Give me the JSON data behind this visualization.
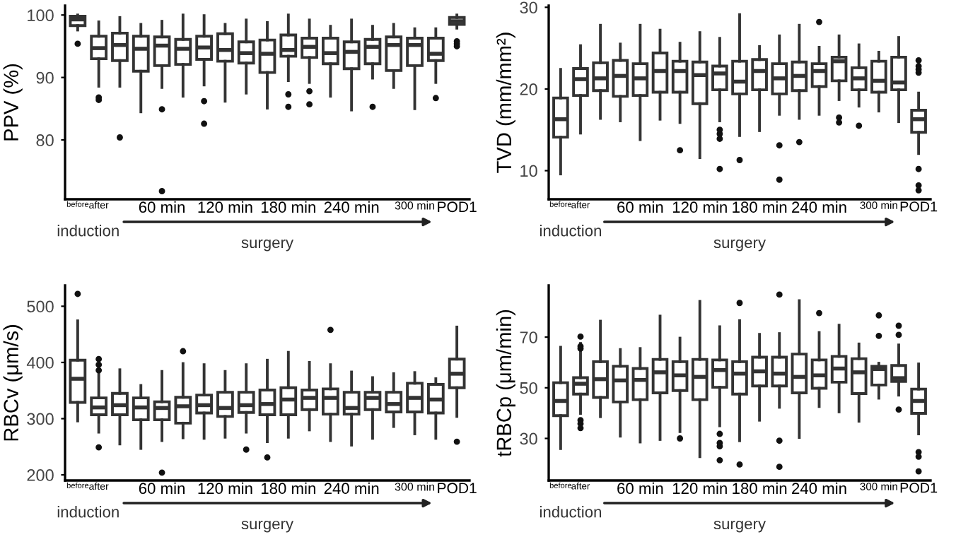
{
  "chart_data": [
    {
      "type": "box",
      "ylabel": "PPV (%)",
      "ylim": [
        70.5,
        101.5
      ],
      "yticks": [
        80,
        90,
        100
      ],
      "grid": false,
      "color": "#333333",
      "annotations": [
        "induction",
        "surgery"
      ],
      "categories": [
        "before",
        "after",
        null,
        null,
        "60 min",
        null,
        null,
        "120 min",
        null,
        null,
        "180 min",
        null,
        null,
        "240 min",
        null,
        null,
        "300 min",
        null,
        "POD1"
      ],
      "boxes": [
        {
          "low": 97.6,
          "q1": 98.3,
          "median": 99.3,
          "q3": 99.8,
          "high": 100,
          "outliers": [
            95.4
          ]
        },
        {
          "low": 88.6,
          "q1": 93.0,
          "median": 94.7,
          "q3": 96.6,
          "high": 98.9,
          "outliers": [
            86.8,
            86.4
          ]
        },
        {
          "low": 88.6,
          "q1": 92.7,
          "median": 95.2,
          "q3": 97.1,
          "high": 99.6,
          "outliers": [
            80.4
          ]
        },
        {
          "low": 84.5,
          "q1": 91.0,
          "median": 94.6,
          "q3": 96.6,
          "high": 98.5
        },
        {
          "low": 88.4,
          "q1": 91.9,
          "median": 95.1,
          "q3": 96.5,
          "high": 99.0,
          "outliers": [
            84.9,
            71.8
          ]
        },
        {
          "low": 87.0,
          "q1": 92.1,
          "median": 94.6,
          "q3": 96.1,
          "high": 100
        },
        {
          "low": 88.8,
          "q1": 92.9,
          "median": 94.8,
          "q3": 96.6,
          "high": 99.9,
          "outliers": [
            86.2,
            82.6
          ]
        },
        {
          "low": 86.2,
          "q1": 92.6,
          "median": 94.4,
          "q3": 97.0,
          "high": 98.5
        },
        {
          "low": 87.5,
          "q1": 92.3,
          "median": 93.9,
          "q3": 95.7,
          "high": 99.2
        },
        {
          "low": 85.1,
          "q1": 90.8,
          "median": 93.8,
          "q3": 96.0,
          "high": 98.8
        },
        {
          "low": 89.5,
          "q1": 93.4,
          "median": 94.4,
          "q3": 96.8,
          "high": 100,
          "outliers": [
            87.3,
            85.3
          ]
        },
        {
          "low": 89.2,
          "q1": 93.2,
          "median": 94.9,
          "q3": 96.3,
          "high": 99.2,
          "outliers": [
            87.8,
            85.7
          ]
        },
        {
          "low": 87.0,
          "q1": 92.2,
          "median": 93.9,
          "q3": 96.3,
          "high": 98.2
        },
        {
          "low": 84.8,
          "q1": 91.4,
          "median": 94.1,
          "q3": 95.7,
          "high": 99.2
        },
        {
          "low": 89.9,
          "q1": 92.2,
          "median": 94.9,
          "q3": 96.1,
          "high": 98.2,
          "outliers": [
            85.3
          ]
        },
        {
          "low": 88.4,
          "q1": 91.1,
          "median": 95.2,
          "q3": 96.5,
          "high": 98.5
        },
        {
          "low": 85.0,
          "q1": 91.9,
          "median": 95.2,
          "q3": 96.3,
          "high": 97.8
        },
        {
          "low": 89.2,
          "q1": 92.7,
          "median": 93.8,
          "q3": 96.3,
          "high": 97.8,
          "outliers": [
            86.7
          ]
        },
        {
          "low": 97.9,
          "q1": 98.5,
          "median": 99.0,
          "q3": 99.6,
          "high": 100,
          "outliers": [
            95.8,
            95.4,
            95.0
          ]
        }
      ]
    },
    {
      "type": "box",
      "ylabel": "TVD (mm/mm²)",
      "ylim": [
        6.5,
        30.2
      ],
      "yticks": [
        10,
        20,
        30
      ],
      "grid": false,
      "color": "#333333",
      "annotations": [
        "induction",
        "surgery"
      ],
      "categories": [
        "before",
        "after",
        null,
        null,
        "60 min",
        null,
        null,
        "120 min",
        null,
        null,
        "180 min",
        null,
        null,
        "240 min",
        null,
        null,
        "300 min",
        null,
        "POD1"
      ],
      "boxes": [
        {
          "low": 9.6,
          "q1": 14.1,
          "median": 16.3,
          "q3": 18.9,
          "high": 22.4
        },
        {
          "low": 14.6,
          "q1": 19.2,
          "median": 21.2,
          "q3": 22.5,
          "high": 25.3
        },
        {
          "low": 16.4,
          "q1": 19.8,
          "median": 21.3,
          "q3": 23.2,
          "high": 27.8
        },
        {
          "low": 16.1,
          "q1": 19.1,
          "median": 21.6,
          "q3": 23.5,
          "high": 25.5
        },
        {
          "low": 13.8,
          "q1": 19.2,
          "median": 21.3,
          "q3": 23.1,
          "high": 27.8
        },
        {
          "low": 16.3,
          "q1": 19.6,
          "median": 22.2,
          "q3": 24.4,
          "high": 27.2
        },
        {
          "low": 15.9,
          "q1": 19.6,
          "median": 22.2,
          "q3": 23.4,
          "high": 25.6,
          "outliers": [
            12.5
          ]
        },
        {
          "low": 11.6,
          "q1": 18.2,
          "median": 21.7,
          "q3": 23.3,
          "high": 26.9
        },
        {
          "low": 16.1,
          "q1": 19.9,
          "median": 21.9,
          "q3": 22.8,
          "high": 26.2,
          "outliers": [
            15.0,
            14.5,
            13.9,
            10.2
          ]
        },
        {
          "low": 14.3,
          "q1": 19.4,
          "median": 20.9,
          "q3": 23.4,
          "high": 29.1,
          "outliers": [
            11.3
          ]
        },
        {
          "low": 14.9,
          "q1": 19.9,
          "median": 22.2,
          "q3": 23.6,
          "high": 25.2
        },
        {
          "low": 16.9,
          "q1": 19.4,
          "median": 21.3,
          "q3": 23.1,
          "high": 26.5,
          "outliers": [
            13.1,
            8.9
          ]
        },
        {
          "low": 16.4,
          "q1": 19.8,
          "median": 21.6,
          "q3": 23.3,
          "high": 27.8,
          "outliers": [
            13.5
          ]
        },
        {
          "low": 16.9,
          "q1": 20.3,
          "median": 22.2,
          "q3": 23.1,
          "high": 25.1,
          "outliers": [
            28.2
          ]
        },
        {
          "low": 18.7,
          "q1": 21.0,
          "median": 23.4,
          "q3": 23.9,
          "high": 26.5,
          "outliers": [
            16.5,
            15.9
          ]
        },
        {
          "low": 17.9,
          "q1": 19.9,
          "median": 21.3,
          "q3": 22.6,
          "high": 25.4,
          "outliers": [
            15.5
          ]
        },
        {
          "low": 17.3,
          "q1": 19.6,
          "median": 21.0,
          "q3": 23.4,
          "high": 24.5
        },
        {
          "low": 16.0,
          "q1": 19.9,
          "median": 20.8,
          "q3": 23.9,
          "high": 26.3
        },
        {
          "low": 12.1,
          "q1": 14.7,
          "median": 16.3,
          "q3": 17.4,
          "high": 19.5,
          "outliers": [
            23.5,
            22.8,
            22.4,
            22.0,
            10.2,
            8.2,
            7.6
          ]
        }
      ]
    },
    {
      "type": "box",
      "ylabel": "RBCv (μm/s)",
      "ylim": [
        190,
        537
      ],
      "yticks": [
        200,
        300,
        400,
        500
      ],
      "grid": false,
      "color": "#333333",
      "annotations": [
        "induction",
        "surgery"
      ],
      "categories": [
        "before",
        "after",
        null,
        null,
        "60 min",
        null,
        null,
        "120 min",
        null,
        null,
        "180 min",
        null,
        null,
        "240 min",
        null,
        null,
        "300 min",
        null,
        "POD1"
      ],
      "boxes": [
        {
          "low": 296,
          "q1": 329,
          "median": 371,
          "q3": 404,
          "high": 474,
          "outliers": [
            522
          ]
        },
        {
          "low": 276,
          "q1": 307,
          "median": 320,
          "q3": 337,
          "high": 382,
          "outliers": [
            406,
            396,
            386,
            249
          ]
        },
        {
          "low": 255,
          "q1": 307,
          "median": 324,
          "q3": 345,
          "high": 387
        },
        {
          "low": 247,
          "q1": 298,
          "median": 320,
          "q3": 337,
          "high": 359
        },
        {
          "low": 261,
          "q1": 298,
          "median": 319,
          "q3": 330,
          "high": 384,
          "outliers": [
            204
          ]
        },
        {
          "low": 266,
          "q1": 292,
          "median": 322,
          "q3": 338,
          "high": 398,
          "outliers": [
            420
          ]
        },
        {
          "low": 265,
          "q1": 310,
          "median": 324,
          "q3": 342,
          "high": 396
        },
        {
          "low": 267,
          "q1": 304,
          "median": 319,
          "q3": 347,
          "high": 384
        },
        {
          "low": 276,
          "q1": 311,
          "median": 324,
          "q3": 347,
          "high": 396,
          "outliers": [
            245
          ]
        },
        {
          "low": 259,
          "q1": 307,
          "median": 326,
          "q3": 351,
          "high": 404,
          "outliers": [
            231
          ]
        },
        {
          "low": 267,
          "q1": 307,
          "median": 334,
          "q3": 355,
          "high": 418
        },
        {
          "low": 280,
          "q1": 316,
          "median": 337,
          "q3": 351,
          "high": 400
        },
        {
          "low": 261,
          "q1": 308,
          "median": 337,
          "q3": 353,
          "high": 396,
          "outliers": [
            458
          ]
        },
        {
          "low": 253,
          "q1": 308,
          "median": 319,
          "q3": 347,
          "high": 383
        },
        {
          "low": 265,
          "q1": 316,
          "median": 337,
          "q3": 347,
          "high": 373
        },
        {
          "low": 286,
          "q1": 312,
          "median": 326,
          "q3": 347,
          "high": 380
        },
        {
          "low": 273,
          "q1": 312,
          "median": 337,
          "q3": 363,
          "high": 382
        },
        {
          "low": 265,
          "q1": 310,
          "median": 334,
          "q3": 361,
          "high": 371
        },
        {
          "low": 304,
          "q1": 355,
          "median": 380,
          "q3": 406,
          "high": 463,
          "outliers": [
            259
          ]
        }
      ]
    },
    {
      "type": "box",
      "ylabel": "tRBCp (μm/min)",
      "ylim": [
        13.4,
        90.4
      ],
      "yticks": [
        30,
        50,
        70
      ],
      "grid": false,
      "color": "#333333",
      "annotations": [
        "induction",
        "surgery"
      ],
      "categories": [
        "before",
        "after",
        null,
        null,
        "60 min",
        null,
        null,
        "120 min",
        null,
        null,
        "180 min",
        null,
        null,
        "240 min",
        null,
        null,
        "300 min",
        null,
        "POD1"
      ],
      "boxes": [
        {
          "low": 26.0,
          "q1": 39.0,
          "median": 44.8,
          "q3": 52.0,
          "high": 66.0
        },
        {
          "low": 39.9,
          "q1": 47.5,
          "median": 51.6,
          "q3": 54.0,
          "high": 67.5,
          "outliers": [
            70.2,
            66.4,
            65.5,
            37.2,
            35.8,
            34.1
          ]
        },
        {
          "low": 38.6,
          "q1": 46.2,
          "median": 53.4,
          "q3": 60.3,
          "high": 76.3
        },
        {
          "low": 30.9,
          "q1": 44.4,
          "median": 52.9,
          "q3": 58.5,
          "high": 65.1
        },
        {
          "low": 28.6,
          "q1": 45.3,
          "median": 53.1,
          "q3": 57.6,
          "high": 65.5
        },
        {
          "low": 29.6,
          "q1": 48.0,
          "median": 56.1,
          "q3": 61.2,
          "high": 78.3
        },
        {
          "low": 32.7,
          "q1": 48.9,
          "median": 54.9,
          "q3": 60.3,
          "high": 69.6,
          "outliers": [
            30.0
          ]
        },
        {
          "low": 22.8,
          "q1": 45.3,
          "median": 54.3,
          "q3": 61.2,
          "high": 84.1
        },
        {
          "low": 35.0,
          "q1": 50.2,
          "median": 57.0,
          "q3": 61.0,
          "high": 74.1,
          "outliers": [
            31.8,
            28.2,
            26.9,
            21.4
          ]
        },
        {
          "low": 29.1,
          "q1": 47.5,
          "median": 55.6,
          "q3": 60.3,
          "high": 76.5,
          "outliers": [
            83.5,
            19.7
          ]
        },
        {
          "low": 37.2,
          "q1": 50.7,
          "median": 56.5,
          "q3": 62.1,
          "high": 71.1
        },
        {
          "low": 42.3,
          "q1": 50.7,
          "median": 55.6,
          "q3": 62.1,
          "high": 71.4,
          "outliers": [
            86.8,
            29.1,
            18.8
          ]
        },
        {
          "low": 30.4,
          "q1": 48.0,
          "median": 54.3,
          "q3": 63.3,
          "high": 84.4
        },
        {
          "low": 42.6,
          "q1": 49.8,
          "median": 54.9,
          "q3": 61.0,
          "high": 71.8,
          "outliers": [
            79.5
          ]
        },
        {
          "low": 40.5,
          "q1": 52.2,
          "median": 57.6,
          "q3": 62.4,
          "high": 74.7
        },
        {
          "low": 36.8,
          "q1": 47.7,
          "median": 56.1,
          "q3": 61.5,
          "high": 67.3
        },
        {
          "low": 45.9,
          "q1": 51.1,
          "median": 57.4,
          "q3": 58.5,
          "high": 59.7,
          "outliers": [
            78.6,
            70.5
          ]
        },
        {
          "low": 47.1,
          "q1": 52.5,
          "median": 53.8,
          "q3": 58.8,
          "high": 66.9,
          "outliers": [
            74.5,
            70.9,
            41.4
          ]
        },
        {
          "low": 31.8,
          "q1": 39.9,
          "median": 44.8,
          "q3": 49.5,
          "high": 59.4,
          "outliers": [
            24.6,
            22.8,
            17.0
          ]
        }
      ]
    }
  ]
}
